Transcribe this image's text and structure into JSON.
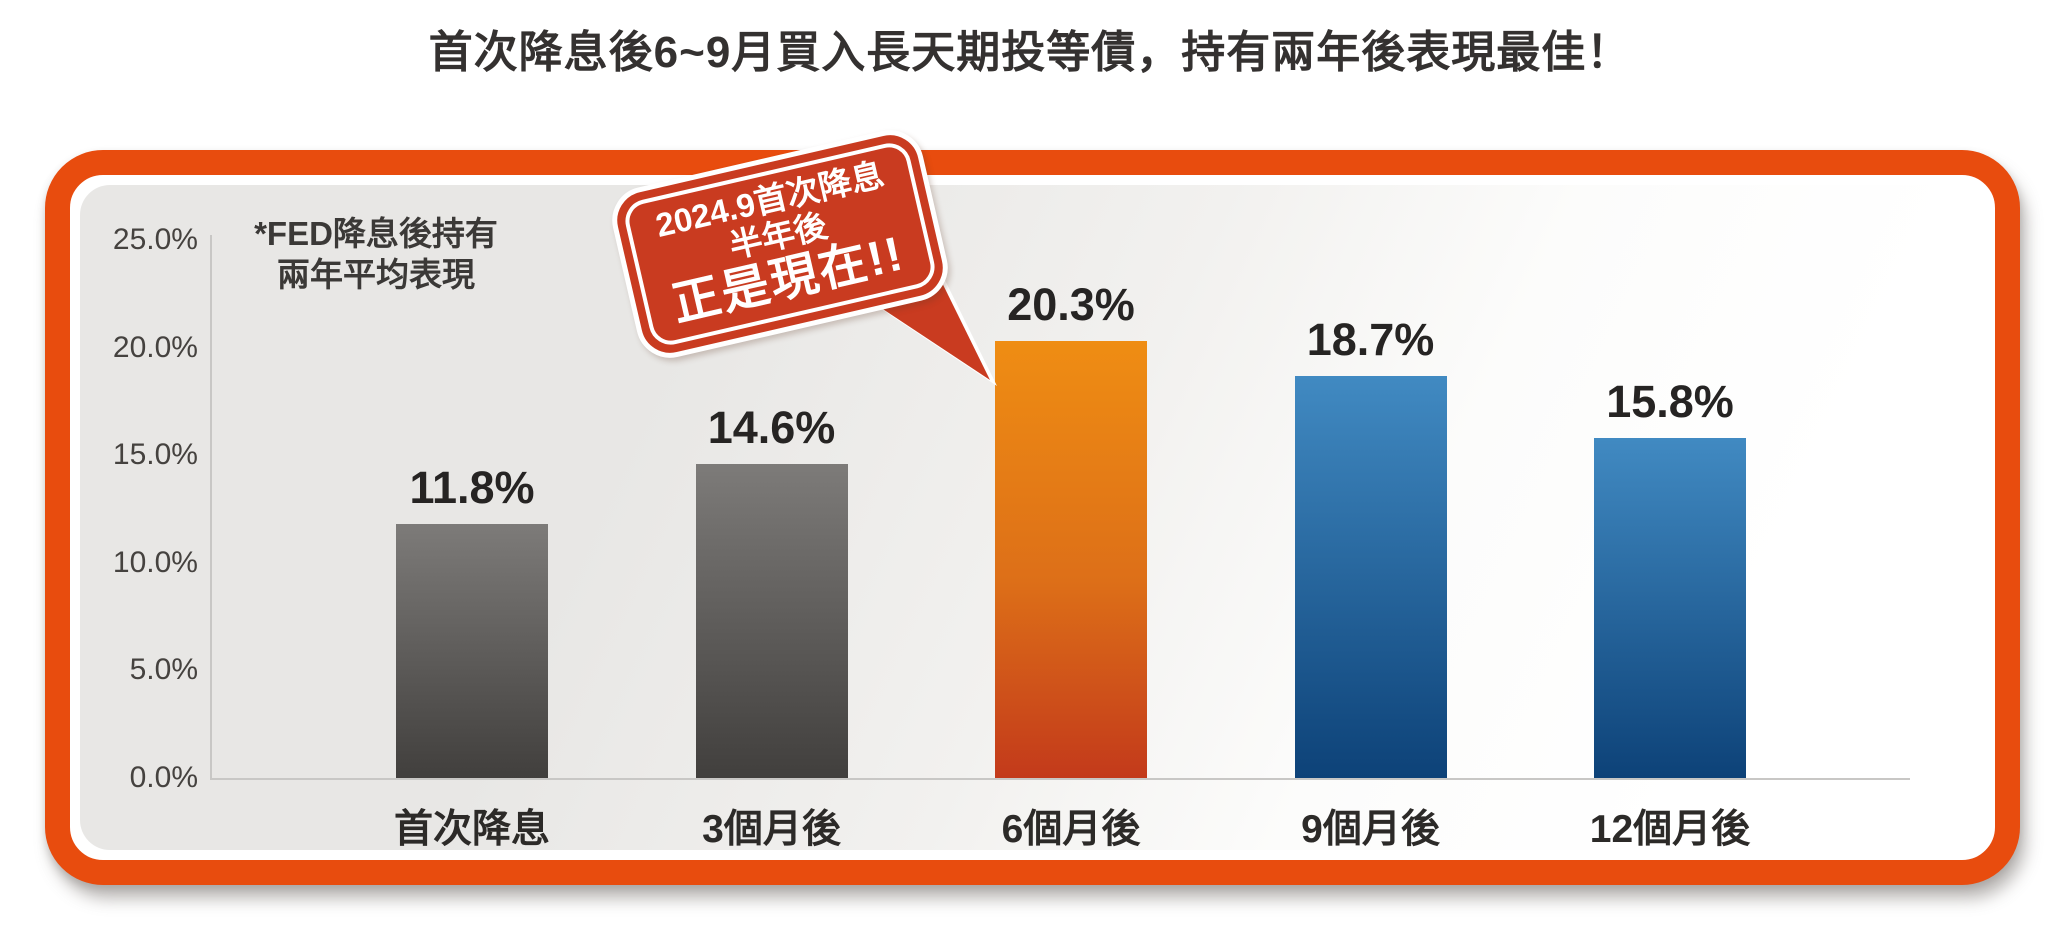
{
  "title": "首次降息後6~9月買入長天期投等債，持有兩年後表現最佳！",
  "note": {
    "line1": "*FED降息後持有",
    "line2": "兩年平均表現"
  },
  "callout": {
    "line1": "2024.9首次降息",
    "line2": "半年後",
    "line3": "正是現在!!"
  },
  "chart_data": {
    "type": "bar",
    "categories": [
      "首次降息",
      "3個月後",
      "6個月後",
      "9個月後",
      "12個月後"
    ],
    "values": [
      11.8,
      14.6,
      20.3,
      18.7,
      15.8
    ],
    "value_labels": [
      "11.8%",
      "14.6%",
      "20.3%",
      "18.7%",
      "15.8%"
    ],
    "yticks": [
      "25.0%",
      "20.0%",
      "15.0%",
      "10.0%",
      "5.0%",
      "0.0%"
    ],
    "ylim": [
      0,
      25
    ],
    "grid": false,
    "legend": "none",
    "xlabel": "",
    "ylabel": "",
    "highlight_index": 2,
    "series_colors": [
      "gray",
      "gray",
      "orange",
      "blue",
      "blue"
    ],
    "bar_gradients": {
      "gray": {
        "top": "#7d7b79",
        "bottom": "#413f3d"
      },
      "orange": {
        "top": "#ef8d13",
        "mid": "#dd6f18",
        "bottom": "#c33a1b"
      },
      "blue": {
        "top": "#418ac2",
        "bottom": "#0d4278"
      }
    }
  },
  "colors": {
    "frame_border": "#e84c0e",
    "callout_bg": "#c93b20",
    "callout_text": "#ffffff",
    "panel_bg_start": "#e8e7e5",
    "panel_bg_end": "#ffffff",
    "axis_line": "#c8c7c5",
    "title_text": "#343130",
    "value_text": "#262423"
  }
}
